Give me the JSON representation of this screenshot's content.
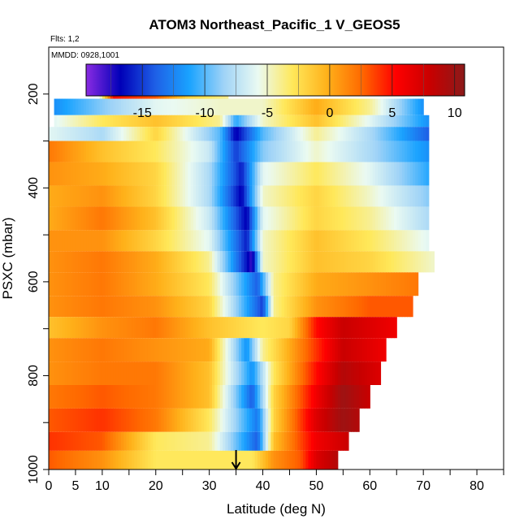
{
  "chart_data": {
    "type": "heatmap",
    "title": "ATOM3 Northeast_Pacific_1 V_GEOS5",
    "subtitle_flights": "Flts: 1,2",
    "subtitle_dates": "MMDD: 0928,1001",
    "xlabel": "Latitude (deg N)",
    "ylabel": "PSXC (mbar)",
    "xlim": [
      0,
      85
    ],
    "ylim": [
      1000,
      100
    ],
    "x_ticks": [
      0,
      5,
      10,
      20,
      30,
      40,
      50,
      60,
      70,
      80
    ],
    "y_ticks": [
      200,
      400,
      600,
      800,
      1000
    ],
    "colorbar": {
      "range": [
        -19.5,
        10.8
      ],
      "ticks": [
        -15,
        -10,
        -5,
        0,
        5,
        10
      ],
      "colors": [
        "#8a2be2",
        "#0000b8",
        "#1e5fe6",
        "#1aa3ff",
        "#9fd3f7",
        "#eafaf2",
        "#ffe85a",
        "#ffb11a",
        "#ff6a00",
        "#ff0000",
        "#c80000",
        "#8b1a1a"
      ]
    },
    "curtain_bands": [
      {
        "p_top": 170,
        "p_bot": 235,
        "lat_min": 9.5,
        "lat_max": 33.5,
        "values": [
          [
            9.5,
            -6
          ],
          [
            12,
            5
          ],
          [
            20,
            3
          ],
          [
            26,
            -2
          ],
          [
            33.5,
            -4
          ]
        ]
      },
      {
        "p_top": 210,
        "p_bot": 245,
        "lat_min": 1,
        "lat_max": 70,
        "values": [
          [
            1,
            -12
          ],
          [
            10,
            -9
          ],
          [
            20,
            -6
          ],
          [
            32,
            -5
          ],
          [
            40,
            -5
          ],
          [
            50,
            0
          ],
          [
            60,
            -4
          ],
          [
            70,
            -12
          ]
        ]
      },
      {
        "p_top": 245,
        "p_bot": 270,
        "lat_min": 1,
        "lat_max": 71,
        "values": [
          [
            1,
            -6
          ],
          [
            10,
            -3
          ],
          [
            20,
            -1
          ],
          [
            32,
            -4
          ],
          [
            35,
            -11
          ],
          [
            40,
            -5
          ],
          [
            50,
            -1
          ],
          [
            60,
            -6
          ],
          [
            71,
            -12
          ]
        ]
      },
      {
        "p_top": 270,
        "p_bot": 300,
        "lat_min": 0,
        "lat_max": 71,
        "values": [
          [
            0,
            -6
          ],
          [
            10,
            -8
          ],
          [
            20,
            -2
          ],
          [
            32,
            -10
          ],
          [
            35,
            -17
          ],
          [
            40,
            -10
          ],
          [
            50,
            -4
          ],
          [
            60,
            -8
          ],
          [
            71,
            -14
          ]
        ]
      },
      {
        "p_top": 300,
        "p_bot": 345,
        "lat_min": 0,
        "lat_max": 71,
        "values": [
          [
            0,
            2
          ],
          [
            10,
            -1
          ],
          [
            20,
            -3
          ],
          [
            30,
            -7
          ],
          [
            35,
            -15
          ],
          [
            40,
            -9
          ],
          [
            50,
            -5
          ],
          [
            60,
            -8
          ],
          [
            71,
            -12
          ]
        ]
      },
      {
        "p_top": 345,
        "p_bot": 395,
        "lat_min": 0,
        "lat_max": 71,
        "values": [
          [
            0,
            1
          ],
          [
            10,
            0
          ],
          [
            20,
            -2
          ],
          [
            30,
            -8
          ],
          [
            36,
            -16
          ],
          [
            40,
            -6
          ],
          [
            50,
            -3
          ],
          [
            60,
            -6
          ],
          [
            71,
            -11
          ]
        ]
      },
      {
        "p_top": 395,
        "p_bot": 440,
        "lat_min": 0,
        "lat_max": 71,
        "values": [
          [
            0,
            0
          ],
          [
            10,
            1
          ],
          [
            20,
            -2
          ],
          [
            30,
            -8
          ],
          [
            36,
            -17
          ],
          [
            40,
            -5
          ],
          [
            50,
            -2
          ],
          [
            60,
            -5
          ],
          [
            71,
            -9
          ]
        ]
      },
      {
        "p_top": 440,
        "p_bot": 490,
        "lat_min": 0,
        "lat_max": 71,
        "values": [
          [
            0,
            0
          ],
          [
            10,
            2
          ],
          [
            20,
            -1
          ],
          [
            30,
            -7
          ],
          [
            37,
            -17
          ],
          [
            40,
            -6
          ],
          [
            50,
            -2
          ],
          [
            60,
            -4
          ],
          [
            71,
            -8
          ]
        ]
      },
      {
        "p_top": 490,
        "p_bot": 535,
        "lat_min": 0,
        "lat_max": 71,
        "values": [
          [
            0,
            1
          ],
          [
            10,
            1
          ],
          [
            20,
            -2
          ],
          [
            30,
            -6
          ],
          [
            37,
            -16
          ],
          [
            40,
            -5
          ],
          [
            50,
            -1
          ],
          [
            60,
            -3
          ],
          [
            71,
            -6
          ]
        ]
      },
      {
        "p_top": 535,
        "p_bot": 580,
        "lat_min": 0,
        "lat_max": 72,
        "values": [
          [
            0,
            1
          ],
          [
            10,
            2
          ],
          [
            20,
            0
          ],
          [
            30,
            -4
          ],
          [
            38,
            -18
          ],
          [
            40,
            -5
          ],
          [
            50,
            -1
          ],
          [
            60,
            -2
          ],
          [
            72,
            -5
          ]
        ]
      },
      {
        "p_top": 580,
        "p_bot": 630,
        "lat_min": 0,
        "lat_max": 69,
        "values": [
          [
            0,
            1
          ],
          [
            10,
            2
          ],
          [
            20,
            0
          ],
          [
            30,
            -3
          ],
          [
            39,
            -14
          ],
          [
            42,
            -4
          ],
          [
            50,
            0
          ],
          [
            60,
            1
          ],
          [
            69,
            2
          ]
        ]
      },
      {
        "p_top": 630,
        "p_bot": 675,
        "lat_min": 0,
        "lat_max": 68,
        "values": [
          [
            0,
            1
          ],
          [
            10,
            2
          ],
          [
            20,
            1
          ],
          [
            30,
            -2
          ],
          [
            40,
            -15
          ],
          [
            42,
            -4
          ],
          [
            50,
            1
          ],
          [
            60,
            3
          ],
          [
            68,
            3
          ]
        ]
      },
      {
        "p_top": 675,
        "p_bot": 720,
        "lat_min": 0,
        "lat_max": 65,
        "values": [
          [
            0,
            -1
          ],
          [
            10,
            1
          ],
          [
            20,
            2
          ],
          [
            30,
            -1
          ],
          [
            40,
            -3
          ],
          [
            45,
            -2
          ],
          [
            50,
            5
          ],
          [
            55,
            8
          ],
          [
            65,
            6
          ]
        ]
      },
      {
        "p_top": 720,
        "p_bot": 770,
        "lat_min": 0,
        "lat_max": 63,
        "values": [
          [
            0,
            1
          ],
          [
            10,
            2
          ],
          [
            20,
            1
          ],
          [
            30,
            0
          ],
          [
            37,
            -12
          ],
          [
            40,
            -4
          ],
          [
            50,
            4
          ],
          [
            55,
            8
          ],
          [
            63,
            6
          ]
        ]
      },
      {
        "p_top": 770,
        "p_bot": 820,
        "lat_min": 0,
        "lat_max": 62,
        "values": [
          [
            0,
            1
          ],
          [
            10,
            2
          ],
          [
            20,
            2
          ],
          [
            30,
            -1
          ],
          [
            38,
            -12
          ],
          [
            42,
            -3
          ],
          [
            50,
            5
          ],
          [
            55,
            9
          ],
          [
            62,
            7
          ]
        ]
      },
      {
        "p_top": 820,
        "p_bot": 870,
        "lat_min": 0,
        "lat_max": 60,
        "values": [
          [
            0,
            2
          ],
          [
            10,
            3
          ],
          [
            20,
            2
          ],
          [
            30,
            -1
          ],
          [
            38,
            -14
          ],
          [
            42,
            -2
          ],
          [
            50,
            6
          ],
          [
            55,
            10
          ],
          [
            60,
            8
          ]
        ]
      },
      {
        "p_top": 870,
        "p_bot": 920,
        "lat_min": 0,
        "lat_max": 58,
        "values": [
          [
            0,
            3
          ],
          [
            10,
            4
          ],
          [
            20,
            2
          ],
          [
            30,
            -3
          ],
          [
            39,
            -13
          ],
          [
            42,
            -2
          ],
          [
            50,
            7
          ],
          [
            55,
            10
          ],
          [
            58,
            9
          ]
        ]
      },
      {
        "p_top": 920,
        "p_bot": 960,
        "lat_min": 0,
        "lat_max": 56,
        "values": [
          [
            0,
            4
          ],
          [
            10,
            3
          ],
          [
            20,
            -3
          ],
          [
            30,
            -4
          ],
          [
            39,
            -14
          ],
          [
            42,
            -1
          ],
          [
            50,
            6
          ],
          [
            56,
            8
          ]
        ]
      },
      {
        "p_top": 960,
        "p_bot": 1005,
        "lat_min": 0,
        "lat_max": 54,
        "values": [
          [
            0,
            3
          ],
          [
            10,
            1
          ],
          [
            20,
            -3
          ],
          [
            30,
            -3
          ],
          [
            38,
            -3
          ],
          [
            42,
            1
          ],
          [
            47,
            3
          ],
          [
            50,
            7
          ],
          [
            54,
            9
          ]
        ]
      }
    ],
    "marker_arrow_lat": 35
  }
}
